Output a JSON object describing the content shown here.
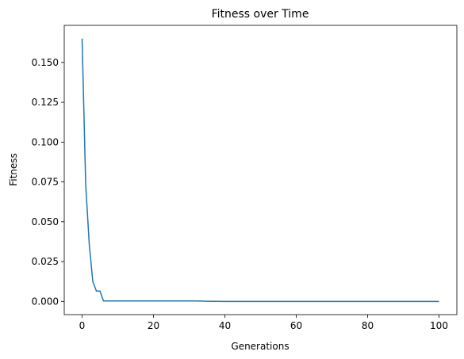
{
  "chart_data": {
    "type": "line",
    "title": "Fitness over Time",
    "xlabel": "Generations",
    "ylabel": "Fitness",
    "xlim": [
      -5,
      105
    ],
    "ylim": [
      -0.0083,
      0.1733
    ],
    "grid": false,
    "line_color": "#1f77b4",
    "xticks": [
      0,
      20,
      40,
      60,
      80,
      100
    ],
    "xtick_labels": [
      "0",
      "20",
      "40",
      "60",
      "80",
      "100"
    ],
    "yticks": [
      0.0,
      0.025,
      0.05,
      0.075,
      0.1,
      0.125,
      0.15
    ],
    "ytick_labels": [
      "0.000",
      "0.025",
      "0.050",
      "0.075",
      "0.100",
      "0.125",
      "0.150"
    ],
    "series": [
      {
        "x": [
          0,
          1,
          2,
          3,
          4,
          5,
          6,
          10,
          20,
          32,
          35,
          40,
          60,
          80,
          100
        ],
        "y": [
          0.165,
          0.074,
          0.036,
          0.0125,
          0.0065,
          0.0065,
          0.0003,
          0.0003,
          0.0003,
          0.0003,
          0.0001,
          0.0,
          0.0,
          0.0,
          0.0
        ]
      }
    ]
  }
}
